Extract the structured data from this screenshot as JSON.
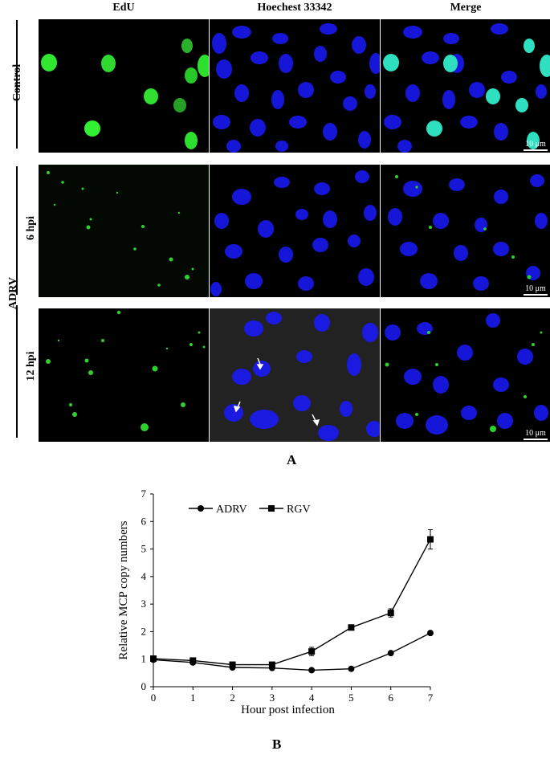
{
  "panel_a": {
    "column_headers": [
      "EdU",
      "Hoechest 33342",
      "Merge"
    ],
    "row_labels": {
      "control": "Control",
      "adrv": "ADRV",
      "hpi6": "6 hpi",
      "hpi12": "12 hpi"
    },
    "scale_bar": "10 μm",
    "label": "A"
  },
  "panel_b": {
    "label": "B"
  },
  "chart_data": {
    "type": "line",
    "xlabel": "Hour post infection",
    "ylabel": "Relative MCP copy numbers",
    "x": [
      0,
      1,
      2,
      3,
      4,
      5,
      6,
      7
    ],
    "xlim": [
      0,
      7
    ],
    "ylim": [
      0,
      7
    ],
    "xticks": [
      "0",
      "1",
      "2",
      "3",
      "4",
      "5",
      "6",
      "7"
    ],
    "yticks": [
      "0",
      "1",
      "2",
      "3",
      "4",
      "5",
      "6",
      "7"
    ],
    "legend_position": "top-left",
    "grid": false,
    "series": [
      {
        "name": "ADRV",
        "marker": "circle",
        "values": [
          0.98,
          0.88,
          0.7,
          0.68,
          0.6,
          0.65,
          1.22,
          1.95
        ],
        "errors": [
          0.05,
          0.05,
          0.04,
          0.04,
          0.03,
          0.04,
          0.05,
          0.05
        ]
      },
      {
        "name": "RGV",
        "marker": "square",
        "values": [
          1.02,
          0.95,
          0.8,
          0.8,
          1.28,
          2.15,
          2.68,
          5.35
        ],
        "errors": [
          0.05,
          0.1,
          0.05,
          0.05,
          0.15,
          0.08,
          0.15,
          0.35
        ]
      }
    ]
  }
}
